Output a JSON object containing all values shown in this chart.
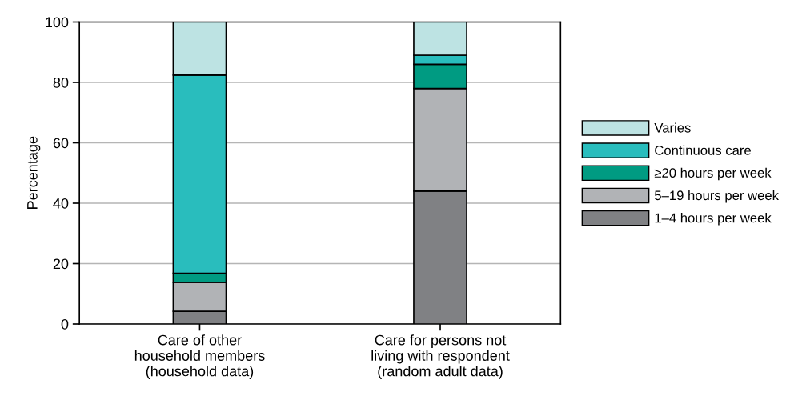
{
  "chart_data": {
    "type": "bar",
    "stacked": true,
    "ylabel": "Percentage",
    "categories": [
      "Care of other\nhousehold members\n(household data)",
      "Care for persons not\nliving with respondent\n(random adult data)"
    ],
    "series": [
      {
        "name": "1–4 hours per week",
        "color": "#808184",
        "values": [
          4.2,
          44
        ]
      },
      {
        "name": "5–19 hours per week",
        "color": "#b1b3b6",
        "values": [
          9.6,
          34
        ]
      },
      {
        "name": "≥20 hours per week",
        "color": "#009b82",
        "values": [
          3,
          8
        ]
      },
      {
        "name": "Continuous care",
        "color": "#29bdbd",
        "values": [
          65.6,
          3
        ]
      },
      {
        "name": "Varies",
        "color": "#bde3e3",
        "values": [
          17.6,
          11
        ]
      }
    ],
    "ylim": [
      0,
      100
    ],
    "yticks": [
      0,
      20,
      40,
      60,
      80,
      100
    ],
    "grid": "y",
    "legend": "right"
  }
}
